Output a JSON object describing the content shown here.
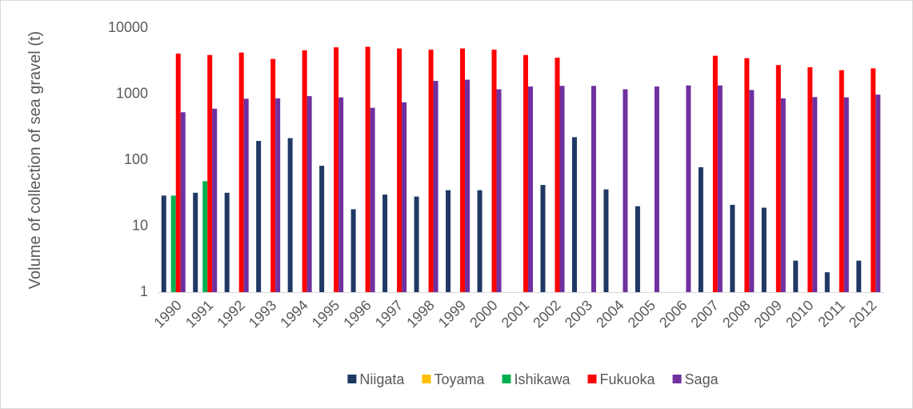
{
  "chart_data": {
    "type": "bar",
    "y_label": "Volume of collection of sea gravel (t)",
    "categories": [
      "1990",
      "1991",
      "1992",
      "1993",
      "1994",
      "1995",
      "1996",
      "1997",
      "1998",
      "1999",
      "2000",
      "2001",
      "2002",
      "2003",
      "2004",
      "2005",
      "2006",
      "2007",
      "2008",
      "2009",
      "2010",
      "2011",
      "2012"
    ],
    "series": [
      {
        "name": "Niigata",
        "color": "#203864",
        "values": [
          29,
          32,
          32,
          195,
          215,
          82,
          18,
          30,
          28,
          35,
          35,
          null,
          42,
          222,
          36,
          20,
          null,
          78,
          21,
          19,
          3,
          2,
          3
        ]
      },
      {
        "name": "Toyama",
        "color": "#ffc000",
        "values": [
          null,
          null,
          null,
          null,
          null,
          null,
          null,
          null,
          null,
          null,
          null,
          null,
          null,
          null,
          null,
          null,
          null,
          null,
          null,
          null,
          null,
          null,
          null
        ]
      },
      {
        "name": "Ishikawa",
        "color": "#00b050",
        "values": [
          29,
          48,
          null,
          null,
          null,
          null,
          null,
          null,
          null,
          null,
          null,
          null,
          null,
          null,
          null,
          null,
          null,
          null,
          null,
          null,
          null,
          null,
          null
        ]
      },
      {
        "name": "Fukuoka",
        "color": "#ff0000",
        "values": [
          4100,
          3900,
          4250,
          3400,
          4600,
          5100,
          5200,
          4900,
          4700,
          4900,
          4700,
          3900,
          3550,
          null,
          null,
          null,
          null,
          3800,
          3500,
          2750,
          2550,
          2300,
          2450
        ]
      },
      {
        "name": "Saga",
        "color": "#7030a0",
        "values": [
          530,
          600,
          850,
          860,
          930,
          890,
          620,
          750,
          1580,
          1650,
          1180,
          1300,
          1330,
          1330,
          1180,
          1300,
          1350,
          1350,
          1150,
          860,
          900,
          890,
          980
        ]
      }
    ],
    "ylim": [
      1,
      10000
    ],
    "yticks": [
      1,
      10,
      100,
      1000,
      10000
    ],
    "log_scale": true,
    "grid": false,
    "legend": "bottom"
  }
}
